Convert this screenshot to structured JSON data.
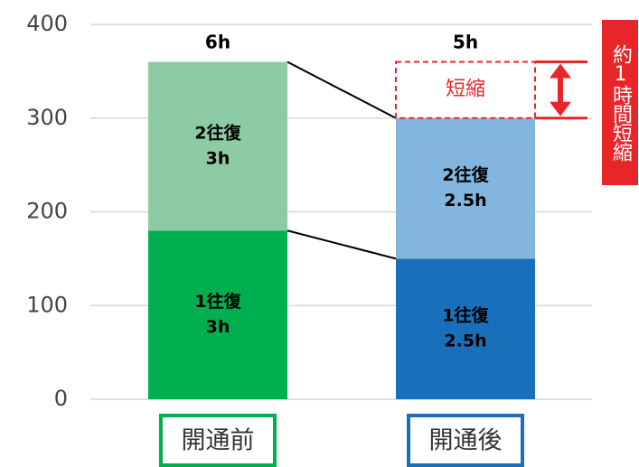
{
  "chart_data": {
    "type": "stacked_bar",
    "categories": [
      "開通前",
      "開通後"
    ],
    "category_colors": [
      "#00b050",
      "#1a6fba"
    ],
    "series": [
      {
        "name": "1往復",
        "colors": [
          "#00b050",
          "#1a6fba"
        ],
        "values": [
          180,
          150
        ],
        "value_labels": [
          "3h",
          "2.5h"
        ]
      },
      {
        "name": "2往復",
        "colors": [
          "#8ccba3",
          "#82b6de"
        ],
        "values": [
          180,
          150
        ],
        "value_labels": [
          "3h",
          "2.5h"
        ]
      }
    ],
    "total_labels": [
      "6h",
      "5h"
    ],
    "reduction_label": "短縮",
    "annotation": "約1時間短縮",
    "ylim": [
      0,
      400
    ],
    "yticks": [
      0,
      100,
      200,
      300,
      400
    ],
    "grid": true
  }
}
